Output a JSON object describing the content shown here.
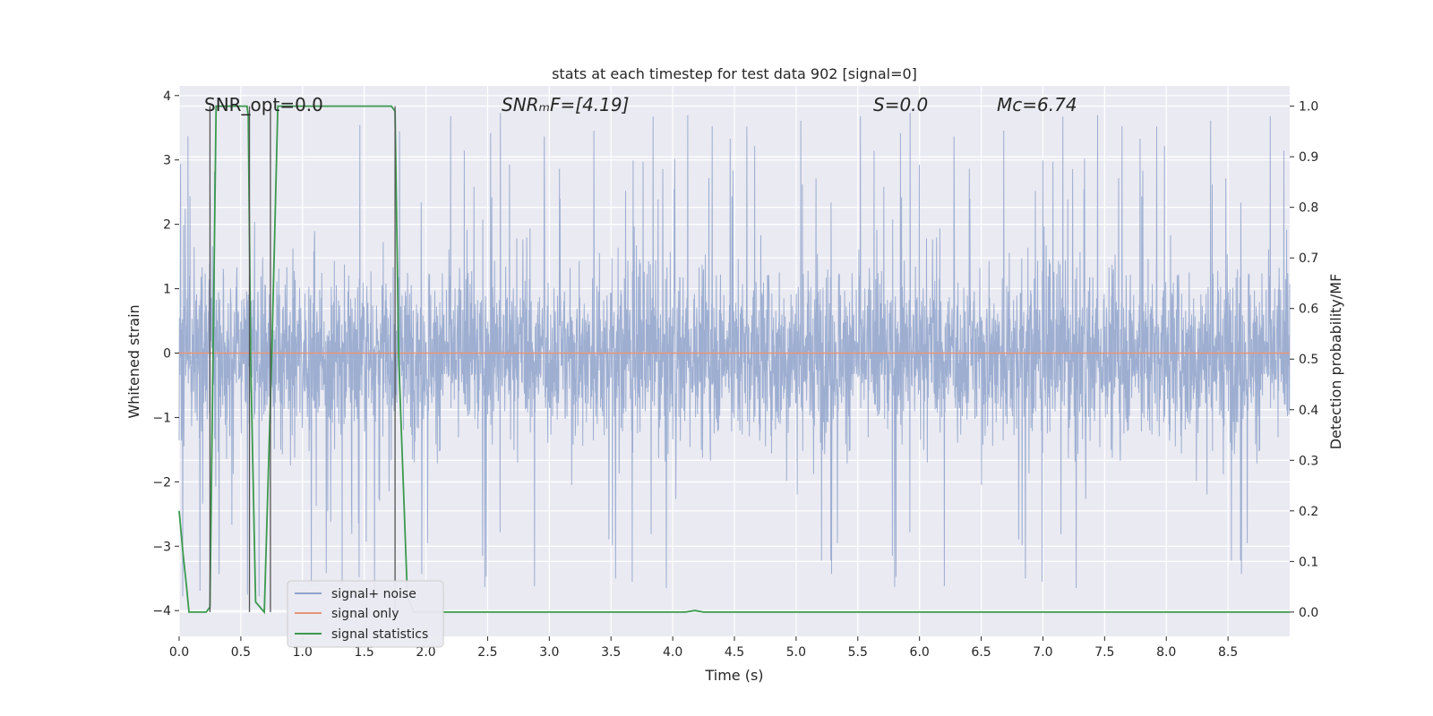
{
  "chart_data": {
    "type": "line",
    "title": "stats at each timestep for test data 902 [signal=0]",
    "xlabel": "Time (s)",
    "ylabel": "Whitened strain",
    "y2label": "Detection probability/MF",
    "xlim": [
      0.0,
      9.0
    ],
    "ylim": [
      -4.4,
      4.15
    ],
    "y2lim": [
      -0.048,
      1.04
    ],
    "xticks": [
      "0.0",
      "0.5",
      "1.0",
      "1.5",
      "2.0",
      "2.5",
      "3.0",
      "3.5",
      "4.0",
      "4.5",
      "5.0",
      "5.5",
      "6.0",
      "6.5",
      "7.0",
      "7.5",
      "8.0",
      "8.5"
    ],
    "yticks": [
      "4",
      "3",
      "2",
      "1",
      "0",
      "−1",
      "−2",
      "−3",
      "−4"
    ],
    "y2ticks": [
      "1.0",
      "0.9",
      "0.8",
      "0.7",
      "0.6",
      "0.5",
      "0.4",
      "0.3",
      "0.2",
      "0.1",
      "0.0"
    ],
    "grid": true,
    "legend_placement": "lower-left",
    "annotations": [
      {
        "text": "SNR_opt=0.0",
        "x": 0.2
      },
      {
        "text": "SNRₘF=[4.19]",
        "x": 2.6
      },
      {
        "text": "S=0.0",
        "x": 5.6
      },
      {
        "text": "Mᴄ=6.74",
        "x": 6.6
      }
    ],
    "series": [
      {
        "name": "signal+ noise",
        "color": "#8fa3cb",
        "note_style": "noisy trace, amplitude about ±1.5 with spikes to about ±3.8",
        "envelope": {
          "typical": 1.5,
          "peak_max": 3.8,
          "peak_min": -4.0
        }
      },
      {
        "name": "signal only",
        "color": "#e5967a",
        "x": [
          0.0,
          9.0
        ],
        "values": [
          0.0,
          0.0
        ]
      },
      {
        "name": "signal statistics",
        "color": "#3a9a4e",
        "axis": "right",
        "x": [
          0.0,
          0.03,
          0.06,
          0.08,
          0.15,
          0.22,
          0.25,
          0.3,
          0.35,
          0.55,
          0.56,
          0.58,
          0.62,
          0.69,
          0.75,
          0.8,
          0.85,
          1.5,
          1.72,
          1.75,
          1.78,
          1.85,
          1.9,
          2.5,
          4.1,
          4.18,
          4.25,
          9.0
        ],
        "values": [
          0.2,
          0.12,
          0.05,
          0.0,
          0.0,
          0.0,
          0.01,
          1.0,
          1.0,
          1.0,
          0.98,
          0.5,
          0.02,
          0.0,
          0.5,
          1.0,
          1.0,
          1.0,
          1.0,
          0.99,
          0.5,
          0.03,
          0.0,
          0.0,
          0.0,
          0.003,
          0.0,
          0.0
        ]
      }
    ],
    "vlines": [
      0.25,
      0.57,
      0.74,
      1.75
    ]
  },
  "legend": {
    "items": [
      {
        "label": "signal+ noise",
        "color": "#8fa3cb"
      },
      {
        "label": "signal only",
        "color": "#e5967a"
      },
      {
        "label": "signal statistics",
        "color": "#3a9a4e"
      }
    ]
  },
  "colors": {
    "axes_bg": "#eaeaf2",
    "grid": "#ffffff",
    "vline": "#555555"
  }
}
